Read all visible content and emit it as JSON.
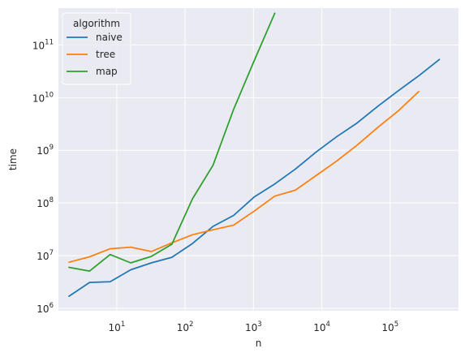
{
  "chart_data": {
    "type": "line",
    "xlabel": "n",
    "ylabel": "time",
    "x_scale": "log",
    "y_scale": "log",
    "xlim": [
      1.4,
      1000000
    ],
    "ylim": [
      900000,
      500000000000
    ],
    "grid": true,
    "x_ticks": [
      {
        "base": "10",
        "exp": "1",
        "value": 10
      },
      {
        "base": "10",
        "exp": "2",
        "value": 100
      },
      {
        "base": "10",
        "exp": "3",
        "value": 1000
      },
      {
        "base": "10",
        "exp": "4",
        "value": 10000
      },
      {
        "base": "10",
        "exp": "5",
        "value": 100000
      }
    ],
    "y_ticks": [
      {
        "base": "10",
        "exp": "6",
        "value": 1000000
      },
      {
        "base": "10",
        "exp": "7",
        "value": 10000000
      },
      {
        "base": "10",
        "exp": "8",
        "value": 100000000
      },
      {
        "base": "10",
        "exp": "9",
        "value": 1000000000
      },
      {
        "base": "10",
        "exp": "10",
        "value": 10000000000
      },
      {
        "base": "10",
        "exp": "11",
        "value": 100000000000
      }
    ],
    "legend": {
      "title": "algorithm",
      "position": "top-left"
    },
    "series": [
      {
        "name": "naive",
        "color": "#1f77b4",
        "x": [
          2,
          4,
          8,
          16,
          32,
          64,
          128,
          256,
          512,
          1024,
          2048,
          4096,
          8192,
          16384,
          32768,
          65536,
          131072,
          262144,
          524288
        ],
        "y": [
          1700000,
          3100000,
          3200000,
          5400000,
          7300000,
          9300000,
          17000000,
          36000000,
          58000000,
          130000000,
          230000000,
          440000000,
          920000000,
          1800000000,
          3300000000,
          6800000000,
          13500000000,
          26000000000,
          53000000000
        ]
      },
      {
        "name": "tree",
        "color": "#ff7f0e",
        "x": [
          2,
          4,
          8,
          16,
          32,
          64,
          128,
          256,
          512,
          1024,
          2048,
          4096,
          8192,
          16384,
          32768,
          65536,
          131072,
          262144
        ],
        "y": [
          7500000,
          9500000,
          13500000,
          14500000,
          12000000,
          17500000,
          25000000,
          31000000,
          38000000,
          70000000,
          135000000,
          175000000,
          330000000,
          620000000,
          1250000000,
          2700000000,
          5600000000,
          13000000000
        ]
      },
      {
        "name": "map",
        "color": "#2ca02c",
        "x": [
          2,
          4,
          8,
          16,
          32,
          64,
          128,
          256,
          512,
          1024,
          2048
        ],
        "y": [
          6000000,
          5100000,
          10500000,
          7300000,
          9700000,
          16500000,
          120000000,
          520000000,
          6000000000,
          50000000000,
          400000000000
        ]
      }
    ]
  }
}
